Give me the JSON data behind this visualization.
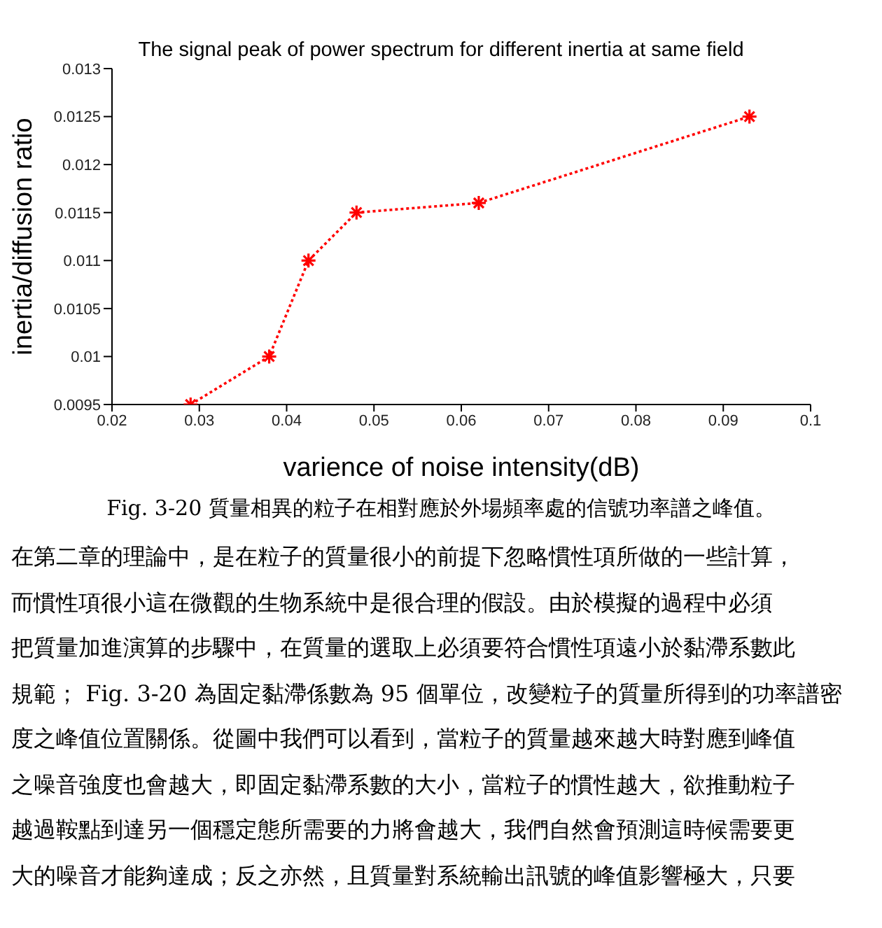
{
  "chart_data": {
    "type": "line",
    "title": "The signal peak of power spectrum for different inertia at same field",
    "xlabel": "varience of noise intensity(dB)",
    "ylabel": "inertia/diffusion ratio",
    "x": [
      0.029,
      0.038,
      0.0425,
      0.048,
      0.062,
      0.093
    ],
    "series": [
      {
        "color": "#ff0000",
        "values": [
          0.0095,
          0.01,
          0.011,
          0.0115,
          0.0116,
          0.0125
        ]
      }
    ],
    "xlim": [
      0.02,
      0.1
    ],
    "xticks": [
      {
        "value": 0.02,
        "label": "0.02"
      },
      {
        "value": 0.03,
        "label": "0.03"
      },
      {
        "value": 0.04,
        "label": "0.04"
      },
      {
        "value": 0.05,
        "label": "0.05"
      },
      {
        "value": 0.06,
        "label": "0.06"
      },
      {
        "value": 0.07,
        "label": "0.07"
      },
      {
        "value": 0.08,
        "label": "0.08"
      },
      {
        "value": 0.09,
        "label": "0.09"
      },
      {
        "value": 0.1,
        "label": "0.1"
      }
    ],
    "ylim": [
      0.0095,
      0.013
    ],
    "yticks": [
      {
        "value": 0.0095,
        "label": "0.0095"
      },
      {
        "value": 0.01,
        "label": "0.01"
      },
      {
        "value": 0.0105,
        "label": "0.0105"
      },
      {
        "value": 0.011,
        "label": "0.011"
      },
      {
        "value": 0.0115,
        "label": "0.0115"
      },
      {
        "value": 0.012,
        "label": "0.012"
      },
      {
        "value": 0.0125,
        "label": "0.0125"
      },
      {
        "value": 0.013,
        "label": "0.013"
      }
    ],
    "grid": false,
    "legend": false,
    "marker": "cross",
    "line_style": "dotted",
    "annotations": [
      "Fig. 3-20 質量相異的粒子在相對應於外場頻率處的信號功率譜之峰值。",
      "在第二章的理論中，是在粒子的質量很小的前提下忽略慣性項所做的一些計算，",
      "而慣性項很小這在微觀的生物系統中是很合理的假設。由於模擬的過程中必須",
      "把質量加進演算的步驟中，在質量的選取上必須要符合慣性項遠小於黏滯系數此",
      "規範； Fig. 3-20 為固定黏滯係數為 95 個單位，改變粒子的質量所得到的功率譜密",
      "度之峰值位置關係。從圖中我們可以看到，當粒子的質量越來越大時對應到峰值",
      "之噪音強度也會越大，即固定黏滯系數的大小，當粒子的慣性越大，欲推動粒子",
      "越過鞍點到達另一個穩定態所需要的力將會越大，我們自然會預測這時候需要更",
      "大的噪音才能夠達成；反之亦然，且質量對系統輸出訊號的峰值影響極大，只要"
    ]
  }
}
